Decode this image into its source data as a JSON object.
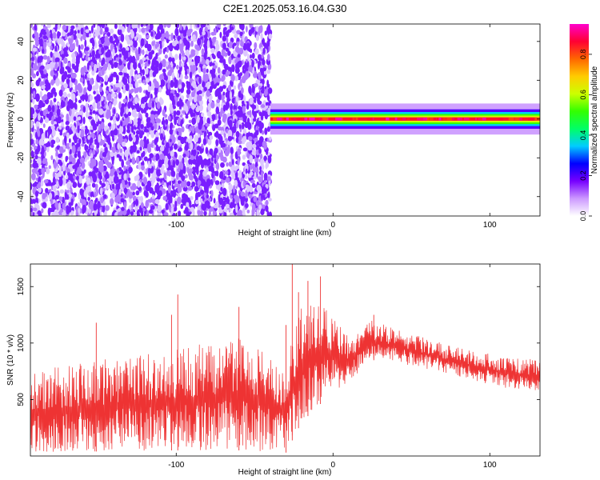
{
  "title": "C2E1.2025.053.16.04.G30",
  "chart_data": [
    {
      "type": "heatmap",
      "xlabel": "Height of straight line (km)",
      "ylabel": "Frequency (Hz)",
      "xlim": [
        -193,
        132
      ],
      "ylim": [
        -50,
        49
      ],
      "x_ticks": [
        -100,
        0,
        100
      ],
      "y_ticks": [
        -40,
        -20,
        0,
        20,
        40
      ],
      "grid": false,
      "colorbar": {
        "label": "Normalized spectral amplitude",
        "range": [
          0,
          0.95
        ],
        "ticks": [
          0.0,
          0.2,
          0.4,
          0.6,
          0.8
        ],
        "colormap": [
          "#ffffff",
          "#cc99ff",
          "#7700ff",
          "#0000ff",
          "#00ccff",
          "#00ff66",
          "#33ff00",
          "#ccff00",
          "#ffcc00",
          "#ff6600",
          "#ff0033",
          "#ff00cc"
        ]
      },
      "regions": [
        {
          "x_range": [
            -193,
            -40
          ],
          "freq_range": [
            -50,
            49
          ],
          "description": "broadband noise",
          "amplitude": 0.1
        },
        {
          "x_range": [
            -40,
            132
          ],
          "freq_center": 0,
          "band_halfwidth": 2.5,
          "peak_amplitude": 0.85
        }
      ]
    },
    {
      "type": "line",
      "xlabel": "Height of straight line (km)",
      "ylabel": "SNR (10 * v/v)",
      "xlim": [
        -193,
        132
      ],
      "ylim": [
        0,
        1700
      ],
      "x_ticks": [
        -100,
        0,
        100
      ],
      "y_ticks": [
        500,
        1000,
        1500
      ],
      "grid": false,
      "series": [
        {
          "color": "#ee3333",
          "envelope": [
            {
              "x": -193,
              "low": 30,
              "high": 750
            },
            {
              "x": -150,
              "low": 40,
              "high": 850
            },
            {
              "x": -100,
              "low": 50,
              "high": 950
            },
            {
              "x": -60,
              "low": 50,
              "high": 1050
            },
            {
              "x": -30,
              "low": 30,
              "high": 800
            },
            {
              "x": -20,
              "low": 300,
              "high": 1350
            },
            {
              "x": -5,
              "low": 500,
              "high": 1350
            },
            {
              "x": 10,
              "low": 650,
              "high": 1050
            },
            {
              "x": 25,
              "low": 850,
              "high": 1200
            },
            {
              "x": 50,
              "low": 800,
              "high": 1080
            },
            {
              "x": 80,
              "low": 700,
              "high": 960
            },
            {
              "x": 110,
              "low": 600,
              "high": 880
            },
            {
              "x": 132,
              "low": 580,
              "high": 850
            }
          ],
          "spikes": [
            {
              "x": -151,
              "y": 1180
            },
            {
              "x": -103,
              "y": 1250
            },
            {
              "x": -99,
              "y": 1430
            },
            {
              "x": -60,
              "y": 1320
            },
            {
              "x": -30,
              "y": 1160
            },
            {
              "x": -26,
              "y": 1700
            },
            {
              "x": -22,
              "y": 1450
            },
            {
              "x": -16,
              "y": 1550
            },
            {
              "x": -8,
              "y": 1590
            },
            {
              "x": 26,
              "y": 1250
            }
          ]
        }
      ]
    }
  ]
}
